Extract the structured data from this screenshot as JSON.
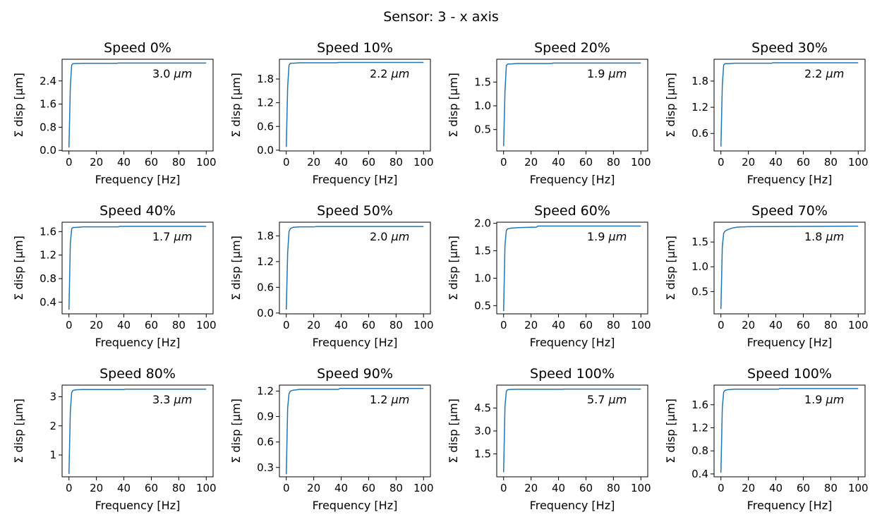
{
  "figure": {
    "title": "Sensor: 3 - x  axis",
    "line_color": "#1f77b4"
  },
  "chart_data": [
    {
      "type": "line",
      "title": "Speed 0%",
      "xlabel": "Frequency [Hz]",
      "ylabel": "Σ disp [μm]",
      "annotation": {
        "value": "3.0",
        "unit": "μm"
      },
      "xlim": [
        -5,
        105
      ],
      "ylim": [
        -0.02,
        3.15
      ],
      "xticks": [
        0,
        20,
        40,
        60,
        80,
        100
      ],
      "yticks": [
        0.0,
        0.8,
        1.6,
        2.4
      ],
      "ytick_labels": [
        "0.0",
        "0.8",
        "1.6",
        "2.4"
      ],
      "x": [
        0,
        1,
        2,
        3,
        5,
        10,
        35,
        36,
        100
      ],
      "y": [
        0.1,
        2.2,
        2.95,
        3.0,
        3.0,
        3.01,
        3.01,
        3.02,
        3.02
      ]
    },
    {
      "type": "line",
      "title": "Speed 10%",
      "xlabel": "Frequency [Hz]",
      "ylabel": "Σ disp [μm]",
      "annotation": {
        "value": "2.2",
        "unit": "μm"
      },
      "xlim": [
        -5,
        105
      ],
      "ylim": [
        -0.02,
        2.3
      ],
      "xticks": [
        0,
        20,
        40,
        60,
        80,
        100
      ],
      "yticks": [
        0.0,
        0.6,
        1.2,
        1.8
      ],
      "ytick_labels": [
        "0.0",
        "0.6",
        "1.2",
        "1.8"
      ],
      "x": [
        0,
        1,
        2,
        3,
        5,
        10,
        37,
        38,
        100
      ],
      "y": [
        0.08,
        1.6,
        2.15,
        2.2,
        2.2,
        2.21,
        2.21,
        2.22,
        2.22
      ]
    },
    {
      "type": "line",
      "title": "Speed 20%",
      "xlabel": "Frequency [Hz]",
      "ylabel": "Σ disp [μm]",
      "annotation": {
        "value": "1.9",
        "unit": "μm"
      },
      "xlim": [
        -5,
        105
      ],
      "ylim": [
        0.05,
        1.98
      ],
      "xticks": [
        0,
        20,
        40,
        60,
        80,
        100
      ],
      "yticks": [
        0.5,
        1.0,
        1.5
      ],
      "ytick_labels": [
        "0.5",
        "1.0",
        "1.5"
      ],
      "x": [
        0,
        1,
        2,
        3,
        5,
        10,
        35,
        36,
        100
      ],
      "y": [
        0.15,
        1.3,
        1.85,
        1.88,
        1.88,
        1.89,
        1.89,
        1.9,
        1.9
      ]
    },
    {
      "type": "line",
      "title": "Speed 30%",
      "xlabel": "Frequency [Hz]",
      "ylabel": "Σ disp [μm]",
      "annotation": {
        "value": "2.2",
        "unit": "μm"
      },
      "xlim": [
        -5,
        105
      ],
      "ylim": [
        0.2,
        2.3
      ],
      "xticks": [
        0,
        20,
        40,
        60,
        80,
        100
      ],
      "yticks": [
        0.6,
        1.2,
        1.8
      ],
      "ytick_labels": [
        "0.6",
        "1.2",
        "1.8"
      ],
      "x": [
        0,
        1,
        2,
        3,
        5,
        10,
        37,
        38,
        100
      ],
      "y": [
        0.3,
        1.7,
        2.17,
        2.2,
        2.2,
        2.21,
        2.21,
        2.22,
        2.22
      ]
    },
    {
      "type": "line",
      "title": "Speed 40%",
      "xlabel": "Frequency [Hz]",
      "ylabel": "Σ disp [μm]",
      "annotation": {
        "value": "1.7",
        "unit": "μm"
      },
      "xlim": [
        -5,
        105
      ],
      "ylim": [
        0.2,
        1.76
      ],
      "xticks": [
        0,
        20,
        40,
        60,
        80,
        100
      ],
      "yticks": [
        0.4,
        0.8,
        1.2,
        1.6
      ],
      "ytick_labels": [
        "0.4",
        "0.8",
        "1.2",
        "1.6"
      ],
      "x": [
        0,
        1,
        2,
        3,
        5,
        10,
        36,
        37,
        100
      ],
      "y": [
        0.27,
        1.4,
        1.65,
        1.67,
        1.67,
        1.68,
        1.68,
        1.69,
        1.69
      ]
    },
    {
      "type": "line",
      "title": "Speed 50%",
      "xlabel": "Frequency [Hz]",
      "ylabel": "Σ disp [μm]",
      "annotation": {
        "value": "2.0",
        "unit": "μm"
      },
      "xlim": [
        -5,
        105
      ],
      "ylim": [
        -0.02,
        2.12
      ],
      "xticks": [
        0,
        20,
        40,
        60,
        80,
        100
      ],
      "yticks": [
        0.0,
        0.6,
        1.2,
        1.8
      ],
      "ytick_labels": [
        "0.0",
        "0.6",
        "1.2",
        "1.8"
      ],
      "x": [
        0,
        1,
        2,
        3,
        5,
        10,
        20,
        22,
        100
      ],
      "y": [
        0.08,
        1.4,
        1.9,
        1.97,
        2.0,
        2.01,
        2.01,
        2.02,
        2.02
      ]
    },
    {
      "type": "line",
      "title": "Speed 60%",
      "xlabel": "Frequency [Hz]",
      "ylabel": "Σ disp [μm]",
      "annotation": {
        "value": "1.9",
        "unit": "μm"
      },
      "xlim": [
        -5,
        105
      ],
      "ylim": [
        0.35,
        2.02
      ],
      "xticks": [
        0,
        20,
        40,
        60,
        80,
        100
      ],
      "yticks": [
        0.5,
        1.0,
        1.5,
        2.0
      ],
      "ytick_labels": [
        "0.5",
        "1.0",
        "1.5",
        "2.0"
      ],
      "x": [
        0,
        1,
        2,
        3,
        5,
        10,
        24,
        25,
        100
      ],
      "y": [
        0.4,
        1.6,
        1.87,
        1.9,
        1.91,
        1.92,
        1.93,
        1.95,
        1.95
      ]
    },
    {
      "type": "line",
      "title": "Speed 70%",
      "xlabel": "Frequency [Hz]",
      "ylabel": "Σ disp [μm]",
      "annotation": {
        "value": "1.8",
        "unit": "μm"
      },
      "xlim": [
        -5,
        105
      ],
      "ylim": [
        0.05,
        1.9
      ],
      "xticks": [
        0,
        20,
        40,
        60,
        80,
        100
      ],
      "yticks": [
        0.5,
        1.0,
        1.5
      ],
      "ytick_labels": [
        "0.5",
        "1.0",
        "1.5"
      ],
      "x": [
        0,
        1,
        2,
        3,
        5,
        8,
        12,
        20,
        100
      ],
      "y": [
        0.15,
        1.4,
        1.68,
        1.72,
        1.75,
        1.78,
        1.8,
        1.81,
        1.82
      ]
    },
    {
      "type": "line",
      "title": "Speed 80%",
      "xlabel": "Frequency [Hz]",
      "ylabel": "Σ disp [μm]",
      "annotation": {
        "value": "3.3",
        "unit": "μm"
      },
      "xlim": [
        -5,
        105
      ],
      "ylim": [
        0.25,
        3.4
      ],
      "xticks": [
        0,
        20,
        40,
        60,
        80,
        100
      ],
      "yticks": [
        1,
        2,
        3
      ],
      "ytick_labels": [
        "1",
        "2",
        "3"
      ],
      "x": [
        0,
        1,
        2,
        3,
        5,
        10,
        40,
        41,
        100
      ],
      "y": [
        0.35,
        2.5,
        3.15,
        3.22,
        3.24,
        3.25,
        3.25,
        3.26,
        3.26
      ]
    },
    {
      "type": "line",
      "title": "Speed 90%",
      "xlabel": "Frequency [Hz]",
      "ylabel": "Σ disp [μm]",
      "annotation": {
        "value": "1.2",
        "unit": "μm"
      },
      "xlim": [
        -5,
        105
      ],
      "ylim": [
        0.19,
        1.27
      ],
      "xticks": [
        0,
        20,
        40,
        60,
        80,
        100
      ],
      "yticks": [
        0.3,
        0.6,
        0.9,
        1.2
      ],
      "ytick_labels": [
        "0.3",
        "0.6",
        "0.9",
        "1.2"
      ],
      "x": [
        0,
        1,
        2,
        3,
        5,
        10,
        38,
        39,
        100
      ],
      "y": [
        0.22,
        1.0,
        1.17,
        1.2,
        1.21,
        1.22,
        1.22,
        1.23,
        1.23
      ]
    },
    {
      "type": "line",
      "title": "Speed 100%",
      "xlabel": "Frequency [Hz]",
      "ylabel": "Σ disp [μm]",
      "annotation": {
        "value": "5.7",
        "unit": "μm"
      },
      "xlim": [
        -5,
        105
      ],
      "ylim": [
        0.0,
        6.0
      ],
      "xticks": [
        0,
        20,
        40,
        60,
        80,
        100
      ],
      "yticks": [
        1.5,
        3.0,
        4.5
      ],
      "ytick_labels": [
        "1.5",
        "3.0",
        "4.5"
      ],
      "x": [
        0,
        1,
        2,
        3,
        5,
        10,
        43,
        44,
        100
      ],
      "y": [
        0.3,
        4.6,
        5.6,
        5.7,
        5.72,
        5.73,
        5.73,
        5.74,
        5.74
      ]
    },
    {
      "type": "line",
      "title": "Speed 100%",
      "xlabel": "Frequency [Hz]",
      "ylabel": "Σ disp [μm]",
      "annotation": {
        "value": "1.9",
        "unit": "μm"
      },
      "xlim": [
        -5,
        105
      ],
      "ylim": [
        0.35,
        1.94
      ],
      "xticks": [
        0,
        20,
        40,
        60,
        80,
        100
      ],
      "yticks": [
        0.4,
        0.8,
        1.2,
        1.6
      ],
      "ytick_labels": [
        "0.4",
        "0.8",
        "1.2",
        "1.6"
      ],
      "x": [
        0,
        1,
        2,
        3,
        5,
        10,
        42,
        43,
        100
      ],
      "y": [
        0.42,
        1.55,
        1.82,
        1.85,
        1.86,
        1.87,
        1.87,
        1.88,
        1.88
      ]
    }
  ]
}
